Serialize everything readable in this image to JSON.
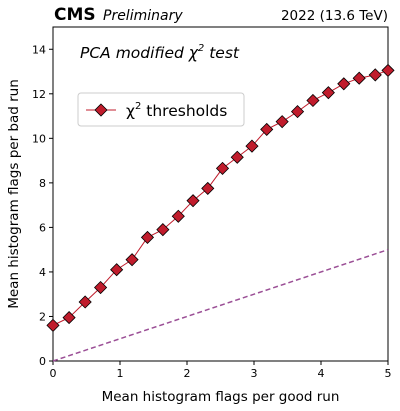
{
  "header": {
    "experiment": "CMS",
    "status": "Preliminary",
    "run_info": "2022 (13.6 TeV)"
  },
  "chart_data": {
    "type": "scatter",
    "annotation": {
      "prefix": "PCA modified χ",
      "sup": "2",
      "suffix": " test"
    },
    "xlabel": "Mean histogram flags per good run",
    "ylabel": "Mean histogram flags per bad run",
    "xlim": [
      0,
      5
    ],
    "ylim": [
      0,
      15
    ],
    "xticks": [
      "0",
      "1",
      "2",
      "3",
      "4",
      "5"
    ],
    "yticks": [
      "0",
      "2",
      "4",
      "6",
      "8",
      "10",
      "12",
      "14"
    ],
    "legend": {
      "position": "upper-left",
      "prefix": "χ",
      "sup": "2",
      "suffix": " thresholds"
    },
    "series": [
      {
        "style": "line-marker",
        "marker": "diamond",
        "color": "#c01c2c",
        "marker_edge": "#000000",
        "x": [
          0.0,
          0.24,
          0.48,
          0.71,
          0.95,
          1.18,
          1.41,
          1.64,
          1.87,
          2.09,
          2.31,
          2.53,
          2.75,
          2.97,
          3.19,
          3.42,
          3.65,
          3.88,
          4.11,
          4.34,
          4.57,
          4.81,
          5.0
        ],
        "y": [
          1.6,
          1.95,
          2.65,
          3.3,
          4.1,
          4.55,
          5.55,
          5.9,
          6.5,
          7.2,
          7.75,
          8.65,
          9.15,
          9.65,
          10.4,
          10.75,
          11.2,
          11.7,
          12.05,
          12.45,
          12.7,
          12.85,
          13.05
        ]
      },
      {
        "style": "dashed-line",
        "color": "#9b4f96",
        "x": [
          0,
          5
        ],
        "y": [
          0,
          5
        ]
      }
    ]
  }
}
